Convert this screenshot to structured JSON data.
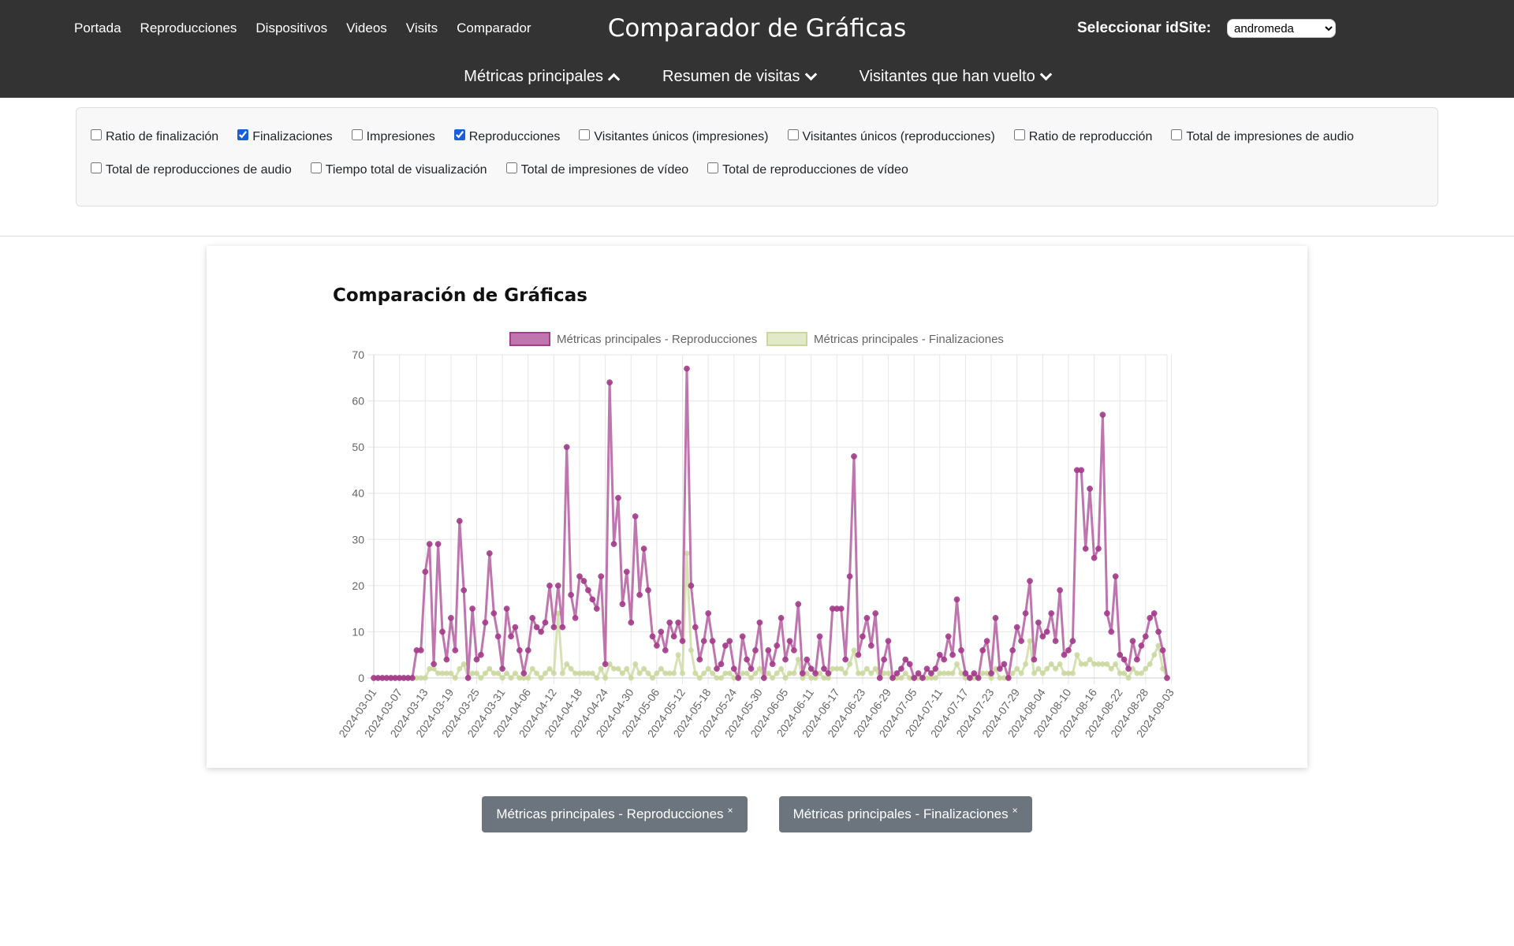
{
  "header": {
    "nav": [
      "Portada",
      "Reproducciones",
      "Dispositivos",
      "Videos",
      "Visits",
      "Comparador"
    ],
    "title": "Comparador de Gráficas",
    "site_label": "Seleccionar idSite:",
    "site_value": "andromeda",
    "subnav": [
      {
        "label": "Métricas principales",
        "chevron": "up"
      },
      {
        "label": "Resumen de visitas",
        "chevron": "down"
      },
      {
        "label": "Visitantes que han vuelto",
        "chevron": "down"
      }
    ]
  },
  "filters": [
    {
      "label": "Ratio de finalización",
      "checked": false
    },
    {
      "label": "Finalizaciones",
      "checked": true
    },
    {
      "label": "Impresiones",
      "checked": false
    },
    {
      "label": "Reproducciones",
      "checked": true
    },
    {
      "label": "Visitantes únicos (impresiones)",
      "checked": false
    },
    {
      "label": "Visitantes únicos (reproducciones)",
      "checked": false
    },
    {
      "label": "Ratio de reproducción",
      "checked": false
    },
    {
      "label": "Total de impresiones de audio",
      "checked": false
    },
    {
      "label": "Total de reproducciones de audio",
      "checked": false
    },
    {
      "label": "Tiempo total de visualización",
      "checked": false
    },
    {
      "label": "Total de impresiones de vídeo",
      "checked": false
    },
    {
      "label": "Total de reproducciones de vídeo",
      "checked": false
    }
  ],
  "chart_title": "Comparación de Gráficas",
  "chips": [
    "Métricas principales - Reproducciones",
    "Métricas principales - Finalizaciones"
  ],
  "chart_data": {
    "type": "line",
    "start_date": "2024-03-01",
    "end_date": "2024-09-03",
    "x_tick_labels": [
      "2024-03-01",
      "2024-03-07",
      "2024-03-13",
      "2024-03-19",
      "2024-03-25",
      "2024-03-31",
      "2024-04-06",
      "2024-04-12",
      "2024-04-18",
      "2024-04-24",
      "2024-04-30",
      "2024-05-06",
      "2024-05-12",
      "2024-05-18",
      "2024-05-24",
      "2024-05-30",
      "2024-06-05",
      "2024-06-11",
      "2024-06-17",
      "2024-06-23",
      "2024-06-29",
      "2024-07-05",
      "2024-07-11",
      "2024-07-17",
      "2024-07-23",
      "2024-07-29",
      "2024-08-04",
      "2024-08-10",
      "2024-08-16",
      "2024-08-22",
      "2024-08-28",
      "2024-09-03"
    ],
    "ylim": [
      0,
      70
    ],
    "y_ticks": [
      0,
      10,
      20,
      30,
      40,
      50,
      60,
      70
    ],
    "grid": true,
    "legend_position": "top",
    "series": [
      {
        "name": "Métricas principales - Reproducciones",
        "color": "#a43c8b",
        "values": [
          0,
          0,
          0,
          0,
          0,
          0,
          0,
          0,
          0,
          0,
          6,
          6,
          23,
          29,
          3,
          29,
          10,
          4,
          13,
          6,
          34,
          19,
          0,
          15,
          4,
          5,
          12,
          27,
          14,
          9,
          2,
          15,
          9,
          11,
          6,
          1,
          6,
          13,
          11,
          10,
          12,
          20,
          11,
          20,
          11,
          50,
          18,
          13,
          22,
          21,
          19,
          17,
          15,
          22,
          3,
          64,
          29,
          39,
          16,
          23,
          12,
          35,
          18,
          28,
          19,
          9,
          7,
          10,
          6,
          12,
          9,
          12,
          8,
          67,
          20,
          11,
          4,
          8,
          14,
          8,
          2,
          3,
          7,
          8,
          2,
          0,
          9,
          4,
          2,
          6,
          12,
          0,
          6,
          3,
          7,
          13,
          4,
          8,
          6,
          16,
          1,
          4,
          2,
          1,
          9,
          2,
          1,
          15,
          15,
          15,
          4,
          22,
          48,
          5,
          9,
          13,
          7,
          14,
          0,
          4,
          8,
          0,
          1,
          2,
          4,
          3,
          0,
          1,
          0,
          2,
          1,
          2,
          5,
          4,
          9,
          5,
          17,
          6,
          1,
          0,
          1,
          0,
          6,
          8,
          1,
          13,
          2,
          3,
          0,
          6,
          11,
          8,
          14,
          21,
          4,
          12,
          9,
          10,
          14,
          8,
          19,
          5,
          6,
          8,
          45,
          45,
          28,
          41,
          26,
          28,
          57,
          14,
          10,
          22,
          5,
          4,
          2,
          8,
          4,
          7,
          9,
          13,
          14,
          10,
          6,
          0
        ],
        "points": true
      },
      {
        "name": "Métricas principales - Finalizaciones",
        "color": "#c9d79c",
        "values": [
          0,
          0,
          0,
          0,
          0,
          0,
          0,
          0,
          0,
          0,
          0,
          0,
          0,
          2,
          2,
          1,
          1,
          1,
          1,
          0,
          2,
          3,
          0,
          1,
          1,
          0,
          1,
          2,
          1,
          1,
          0,
          1,
          0,
          1,
          0,
          0,
          0,
          2,
          1,
          0,
          1,
          2,
          1,
          14,
          1,
          3,
          2,
          1,
          1,
          1,
          1,
          1,
          0,
          2,
          0,
          3,
          2,
          2,
          1,
          2,
          0,
          3,
          1,
          2,
          1,
          0,
          1,
          2,
          1,
          1,
          1,
          5,
          1,
          27,
          6,
          1,
          0,
          1,
          2,
          1,
          0,
          0,
          1,
          1,
          0,
          0,
          1,
          1,
          0,
          1,
          2,
          0,
          1,
          0,
          1,
          2,
          0,
          1,
          1,
          4,
          0,
          1,
          0,
          0,
          1,
          0,
          0,
          2,
          2,
          2,
          1,
          3,
          6,
          1,
          1,
          2,
          1,
          2,
          0,
          1,
          1,
          0,
          0,
          0,
          1,
          0,
          0,
          0,
          0,
          0,
          0,
          0,
          1,
          1,
          1,
          1,
          3,
          1,
          0,
          0,
          0,
          0,
          1,
          1,
          0,
          2,
          0,
          0,
          0,
          1,
          2,
          1,
          3,
          8,
          1,
          2,
          1,
          2,
          3,
          2,
          3,
          1,
          1,
          1,
          5,
          3,
          3,
          4,
          3,
          3,
          3,
          3,
          2,
          3,
          1,
          1,
          0,
          2,
          1,
          1,
          2,
          3,
          5,
          7,
          2,
          0
        ],
        "points": true
      }
    ]
  }
}
